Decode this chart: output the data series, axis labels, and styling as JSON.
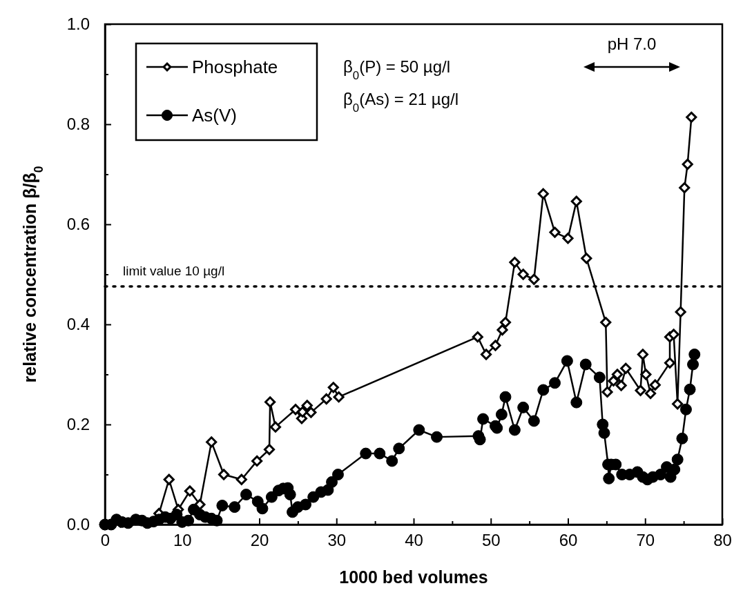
{
  "chart_data": {
    "type": "line",
    "xlabel": "1000 bed volumes",
    "ylabel": "relative concentration β/β$_{0}$",
    "xlim": [
      0,
      80
    ],
    "xticks": [
      0,
      {
        "value": 5,
        "label": null
      },
      10,
      {
        "value": 15,
        "label": null
      },
      20,
      {
        "value": 25,
        "label": null
      },
      30,
      {
        "value": 35,
        "label": null
      },
      40,
      {
        "value": 45,
        "label": null
      },
      50,
      {
        "value": 55,
        "label": null
      },
      60,
      {
        "value": 65,
        "label": null
      },
      70,
      {
        "value": 75,
        "label": null
      },
      80
    ],
    "ylim": [
      0,
      1
    ],
    "yticks": [
      {
        "value": 0,
        "label": "0.0"
      },
      {
        "value": 0.1,
        "label": null
      },
      {
        "value": 0.2,
        "label": "0.2"
      },
      {
        "value": 0.3,
        "label": null
      },
      {
        "value": 0.4,
        "label": "0.4"
      },
      {
        "value": 0.5,
        "label": null
      },
      {
        "value": 0.6,
        "label": "0.6"
      },
      {
        "value": 0.7,
        "label": null
      },
      {
        "value": 0.8,
        "label": "0.8"
      },
      {
        "value": 0.9,
        "label": null
      },
      {
        "value": 1,
        "label": "1.0"
      }
    ],
    "grid": false,
    "legend": "top left",
    "series": [
      {
        "name": "Phosphate",
        "color": "#000000",
        "marker": "diamond",
        "x": [
          0,
          2,
          5,
          7,
          8.3,
          9.5,
          11,
          12.3,
          13.8,
          15.4,
          17.7,
          19.7,
          21.3,
          21.4,
          22.1,
          24.7,
          25.5,
          25.6,
          26.2,
          26.7,
          28.7,
          29.6,
          30.3,
          48.3,
          49.4,
          50.6,
          51.5,
          51.9,
          53.1,
          54.2,
          55.6,
          56.8,
          58.3,
          60.0,
          61.1,
          62.4,
          64.9,
          65.1,
          65.9,
          66.4,
          66.9,
          67.5,
          69.4,
          69.7,
          70.1,
          70.7,
          71.3,
          73.2,
          73.2,
          73.7,
          74.2,
          74.6,
          75.1,
          75.5,
          76.0
        ],
        "values": [
          0,
          0.005,
          null,
          0.022,
          0.09,
          0.03,
          0.067,
          0.04,
          0.165,
          0.1,
          0.09,
          0.127,
          0.15,
          0.245,
          0.195,
          0.23,
          0.212,
          0.225,
          0.238,
          0.224,
          0.251,
          0.274,
          0.255,
          0.375,
          0.34,
          0.358,
          0.389,
          0.404,
          0.524,
          0.5,
          0.49,
          0.661,
          0.584,
          0.572,
          0.646,
          0.532,
          0.404,
          0.265,
          0.287,
          0.3,
          0.278,
          0.312,
          0.268,
          0.34,
          0.3,
          0.262,
          0.279,
          0.323,
          0.375,
          0.38,
          0.241,
          0.425,
          0.673,
          0.72,
          0.814
        ]
      },
      {
        "name": "As(V)",
        "color": "#000000",
        "marker": "circle",
        "x": [
          0,
          0.8,
          1.5,
          2.2,
          3,
          4,
          4.8,
          5.5,
          6.3,
          7,
          7.8,
          8.5,
          9.3,
          10,
          10.8,
          11.5,
          12.3,
          13,
          13.8,
          14.5,
          15.2,
          16.8,
          18.3,
          19.8,
          20.4,
          21.6,
          22.5,
          23.1,
          23.7,
          24.0,
          24.3,
          25,
          26,
          27,
          28,
          28.9,
          29.4,
          30.2,
          33.8,
          35.6,
          37.2,
          38.1,
          40.7,
          43,
          48.4,
          48.6,
          49,
          50.6,
          50.8,
          51.4,
          51.9,
          53.1,
          54.2,
          55.6,
          56.8,
          58.3,
          59.9,
          61.1,
          62.3,
          64.1,
          64.5,
          64.7,
          65.2,
          65.3,
          65.6,
          66.2,
          67,
          68,
          69,
          69.7,
          70.3,
          71,
          72,
          72.8,
          73.3,
          73.8,
          74.2,
          74.8,
          75.3,
          75.8,
          76.2,
          76.4
        ],
        "values": [
          0,
          0,
          0.01,
          0.005,
          0.003,
          0.01,
          0.008,
          0.003,
          0.006,
          0.01,
          0.015,
          0.012,
          0.02,
          0.005,
          0.008,
          0.03,
          0.02,
          0.015,
          0.012,
          0.008,
          0.038,
          0.035,
          0.06,
          0.046,
          0.032,
          0.055,
          0.068,
          0.072,
          0.073,
          0.06,
          0.025,
          0.035,
          0.04,
          0.055,
          0.065,
          0.069,
          0.085,
          0.1,
          0.142,
          0.142,
          0.127,
          0.152,
          0.189,
          0.175,
          0.177,
          0.17,
          0.211,
          0.197,
          0.193,
          0.22,
          0.255,
          0.189,
          0.234,
          0.207,
          0.269,
          0.283,
          0.327,
          0.244,
          0.32,
          0.294,
          0.2,
          0.183,
          0.12,
          0.092,
          0.12,
          0.12,
          0.1,
          0.1,
          0.105,
          0.095,
          0.09,
          0.095,
          0.1,
          0.115,
          0.095,
          0.11,
          0.13,
          0.172,
          0.23,
          0.27,
          0.32,
          0.34
        ]
      }
    ],
    "ref_lines": [
      {
        "axis": "y",
        "value": 0.476,
        "label": "limit value 10 µg/l",
        "color": "#000000",
        "line_style": "dotted"
      }
    ],
    "annotations": [
      "β$_{0}$(P)  = 50 µg/l",
      "β$_{0}$(As) = 21 µg/l",
      "pH 7.0"
    ]
  }
}
